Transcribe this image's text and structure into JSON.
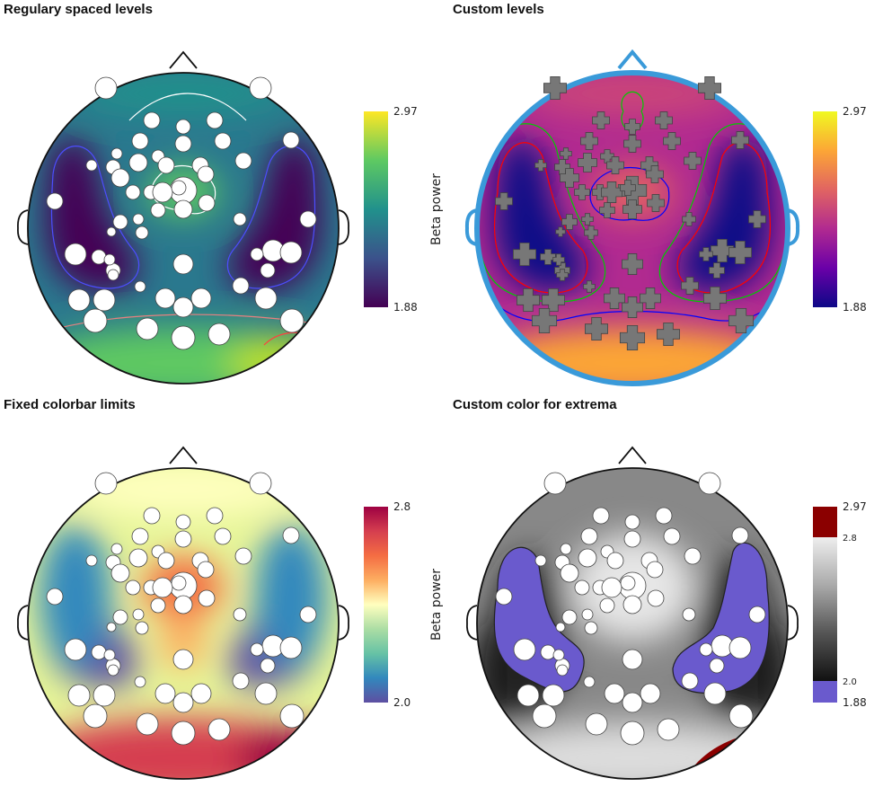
{
  "chart_data": [
    {
      "type": "heatmap",
      "title": "Regulary spaced levels",
      "colorbar": {
        "label": "Beta power",
        "min": 1.88,
        "max": 2.97,
        "ticks": [
          "2.97",
          "1.88"
        ],
        "colors": [
          "#440154",
          "#3b528b",
          "#21918c",
          "#5ec962",
          "#fde725"
        ]
      },
      "contours": "regularly spaced",
      "markers": "circle"
    },
    {
      "type": "heatmap",
      "title": "Custom levels",
      "colorbar": {
        "label": "Beta power",
        "min": 1.88,
        "max": 2.97,
        "ticks": [
          "2.97",
          "1.88"
        ],
        "colors": [
          "#0d0887",
          "#6a00a8",
          "#b12a90",
          "#e16462",
          "#fca636",
          "#f0f921"
        ]
      },
      "contours": "custom",
      "contour_colors": [
        "#0000ff",
        "#ff0000",
        "#00cc00"
      ],
      "markers": "plus"
    },
    {
      "type": "heatmap",
      "title": "Fixed colorbar limits",
      "colorbar": {
        "label": "Beta power",
        "min": 2.0,
        "max": 2.8,
        "ticks": [
          "2.8",
          "2.0"
        ],
        "colors": [
          "#5e4fa2",
          "#3288bd",
          "#66c2a5",
          "#abdda4",
          "#ffffbf",
          "#fdae61",
          "#f46d43",
          "#d53e4f",
          "#9e0142"
        ]
      },
      "markers": "circle"
    },
    {
      "type": "heatmap",
      "title": "Custom color for extrema",
      "colorbar": {
        "label": "Beta power",
        "min": 1.88,
        "max": 2.97,
        "inner_ticks": [
          "2.8",
          "2.0"
        ],
        "ticks": [
          "2.97",
          "1.88"
        ],
        "colors": [
          "#111111",
          "#555555",
          "#aaaaaa",
          "#eeeeee"
        ],
        "low_color": "#6a5acd",
        "high_color": "#8b0000",
        "low_cut": 2.0,
        "high_cut": 2.8
      },
      "markers": "circle"
    }
  ]
}
